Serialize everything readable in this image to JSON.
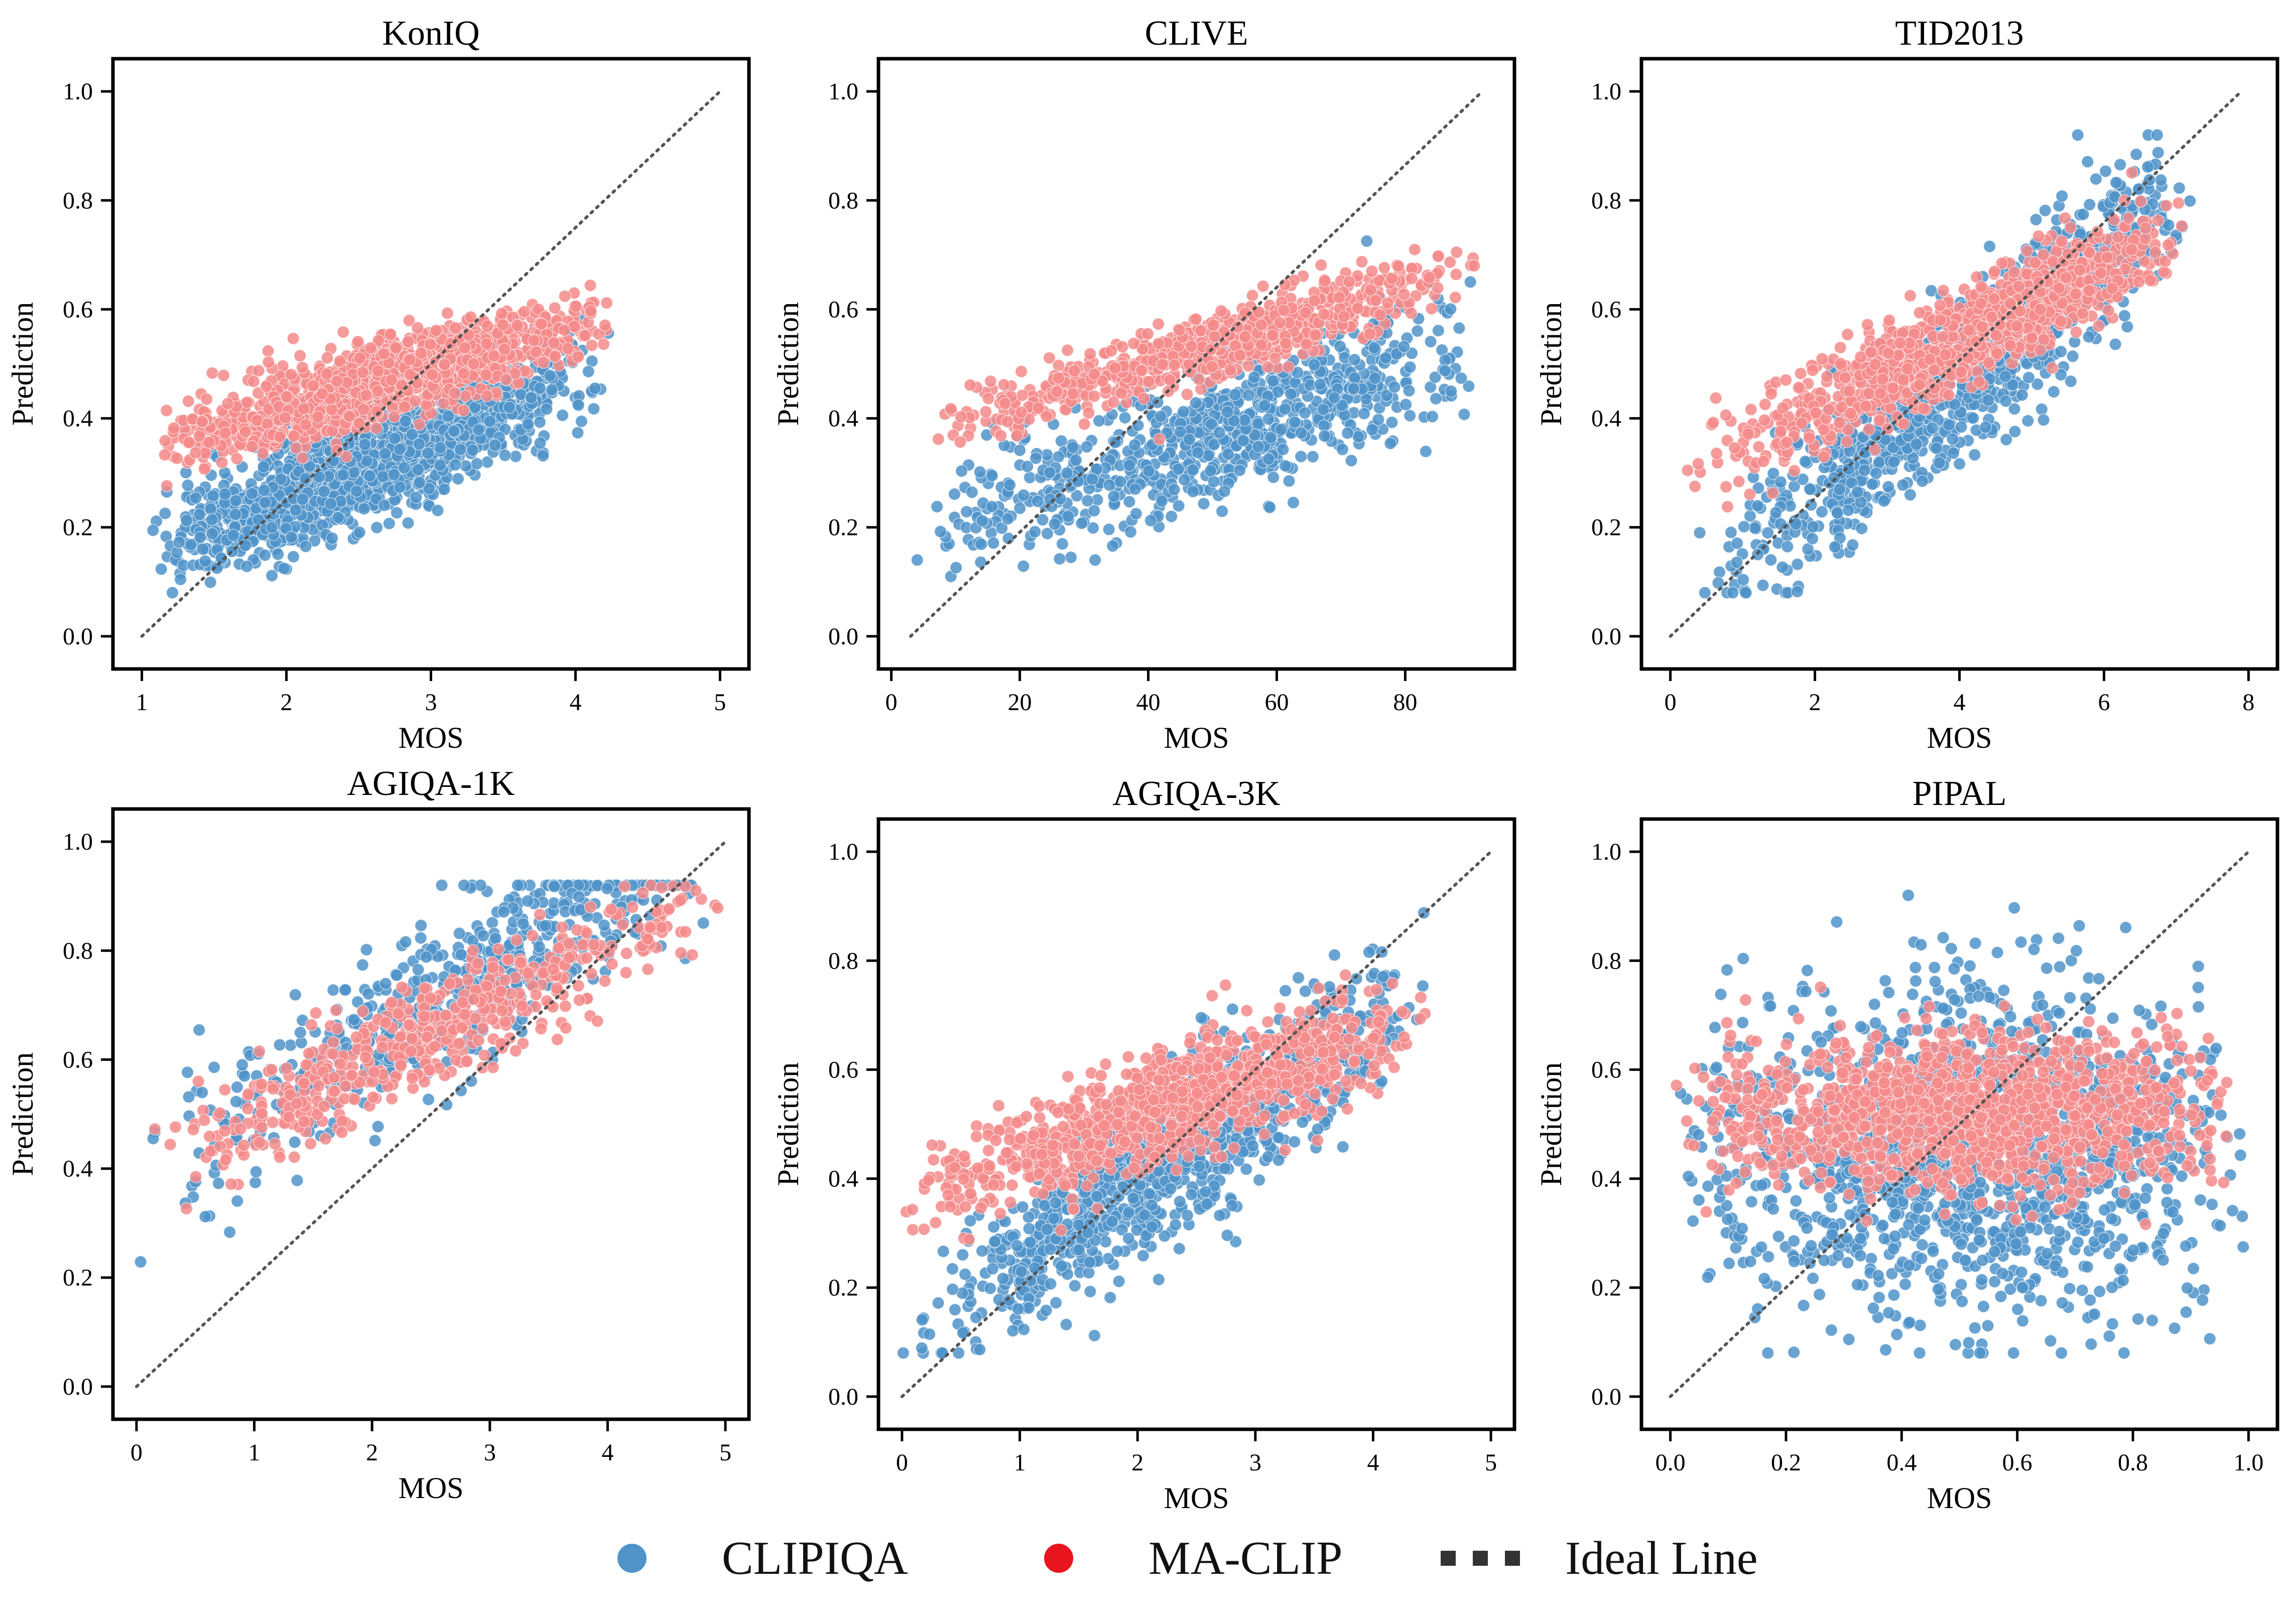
{
  "colors": {
    "clipiqa": "#4f93c9",
    "maclip": "#f48a8a",
    "maclip_legend": "#e8141e",
    "ideal": "#555555"
  },
  "legend": {
    "clipiqa": "CLIPIQA",
    "maclip": "MA-CLIP",
    "ideal": "Ideal Line"
  },
  "chart_data": [
    {
      "type": "scatter",
      "title": "KonIQ",
      "xlabel": "MOS",
      "ylabel": "Prediction",
      "xlim": [
        0.8,
        5.2
      ],
      "ylim": [
        -0.06,
        1.06
      ],
      "xticks": [
        "1",
        "2",
        "3",
        "4",
        "5"
      ],
      "yticks": [
        "0.0",
        "0.2",
        "0.4",
        "0.6",
        "0.8",
        "1.0"
      ],
      "ideal_line": [
        [
          1,
          0
        ],
        [
          5,
          1
        ]
      ],
      "series": [
        {
          "name": "CLIPIQA",
          "dist": {
            "x_min": 1.05,
            "x_max": 4.3,
            "x_mode": 2.2,
            "y0": 0.155,
            "slope": 0.105,
            "spread": 0.05,
            "count": 1400
          }
        },
        {
          "name": "MA-CLIP",
          "dist": {
            "x_min": 1.1,
            "x_max": 4.35,
            "x_mode": 2.6,
            "y0": 0.35,
            "slope": 0.075,
            "spread": 0.035,
            "count": 1300
          }
        }
      ]
    },
    {
      "type": "scatter",
      "title": "CLIVE",
      "xlabel": "MOS",
      "ylabel": "Prediction",
      "xlim": [
        -2,
        97
      ],
      "ylim": [
        -0.06,
        1.06
      ],
      "xticks": [
        "0",
        "20",
        "40",
        "60",
        "80"
      ],
      "yticks": [
        "0.0",
        "0.2",
        "0.4",
        "0.6",
        "0.8",
        "1.0"
      ],
      "ideal_line": [
        [
          3,
          0
        ],
        [
          92,
          1
        ]
      ],
      "series": [
        {
          "name": "CLIPIQA",
          "dist": {
            "x_min": 3,
            "x_max": 92,
            "x_mode": 58,
            "y0": 0.17,
            "slope": 0.0042,
            "spread": 0.06,
            "count": 800
          }
        },
        {
          "name": "MA-CLIP",
          "dist": {
            "x_min": 3,
            "x_max": 92,
            "x_mode": 60,
            "y0": 0.37,
            "slope": 0.0035,
            "spread": 0.03,
            "count": 700
          }
        }
      ]
    },
    {
      "type": "scatter",
      "title": "TID2013",
      "xlabel": "MOS",
      "ylabel": "Prediction",
      "xlim": [
        -0.4,
        8.4
      ],
      "ylim": [
        -0.06,
        1.06
      ],
      "xticks": [
        "0",
        "2",
        "4",
        "6",
        "8"
      ],
      "yticks": [
        "0.0",
        "0.2",
        "0.4",
        "0.6",
        "0.8",
        "1.0"
      ],
      "ideal_line": [
        [
          0,
          0
        ],
        [
          7.9,
          1
        ]
      ],
      "series": [
        {
          "name": "CLIPIQA",
          "dist": {
            "x_min": 0.3,
            "x_max": 7.2,
            "x_mode": 5,
            "y0": 0.07,
            "slope": 0.11,
            "spread": 0.07,
            "count": 1100
          }
        },
        {
          "name": "MA-CLIP",
          "dist": {
            "x_min": 0.2,
            "x_max": 7.2,
            "x_mode": 5,
            "y0": 0.3,
            "slope": 0.065,
            "spread": 0.045,
            "count": 1000
          }
        }
      ]
    },
    {
      "type": "scatter",
      "title": "AGIQA-1K",
      "xlabel": "MOS",
      "ylabel": "Prediction",
      "xlim": [
        -0.2,
        5.2
      ],
      "ylim": [
        -0.06,
        1.06
      ],
      "xticks": [
        "0",
        "1",
        "2",
        "3",
        "4",
        "5"
      ],
      "yticks": [
        "0.0",
        "0.2",
        "0.4",
        "0.6",
        "0.8",
        "1.0"
      ],
      "ideal_line": [
        [
          0,
          0
        ],
        [
          5,
          1
        ]
      ],
      "series": [
        {
          "name": "CLIPIQA",
          "dist": {
            "x_min": 0,
            "x_max": 5,
            "x_mode": 2.8,
            "y0": 0.4,
            "slope": 0.12,
            "spread": 0.07,
            "count": 550
          }
        },
        {
          "name": "MA-CLIP",
          "dist": {
            "x_min": 0,
            "x_max": 5,
            "x_mode": 2.7,
            "y0": 0.4,
            "slope": 0.1,
            "spread": 0.05,
            "count": 550
          }
        }
      ]
    },
    {
      "type": "scatter",
      "title": "AGIQA-3K",
      "xlabel": "MOS",
      "ylabel": "Prediction",
      "xlim": [
        -0.2,
        5.2
      ],
      "ylim": [
        -0.06,
        1.06
      ],
      "xticks": [
        "0",
        "1",
        "2",
        "3",
        "4",
        "5"
      ],
      "yticks": [
        "0.0",
        "0.2",
        "0.4",
        "0.6",
        "0.8",
        "1.0"
      ],
      "ideal_line": [
        [
          0,
          0
        ],
        [
          5,
          1
        ]
      ],
      "series": [
        {
          "name": "CLIPIQA",
          "dist": {
            "x_min": 0,
            "x_max": 4.5,
            "x_mode": 2.5,
            "y0": 0.12,
            "slope": 0.14,
            "spread": 0.07,
            "count": 1100
          }
        },
        {
          "name": "MA-CLIP",
          "dist": {
            "x_min": 0,
            "x_max": 4.5,
            "x_mode": 2.6,
            "y0": 0.36,
            "slope": 0.075,
            "spread": 0.05,
            "count": 1000
          }
        }
      ]
    },
    {
      "type": "scatter",
      "title": "PIPAL",
      "xlabel": "MOS",
      "ylabel": "Prediction",
      "xlim": [
        -0.05,
        1.05
      ],
      "ylim": [
        -0.06,
        1.06
      ],
      "xticks": [
        "0.0",
        "0.2",
        "0.4",
        "0.6",
        "0.8",
        "1.0"
      ],
      "yticks": [
        "0.0",
        "0.2",
        "0.4",
        "0.6",
        "0.8",
        "1.0"
      ],
      "ideal_line": [
        [
          0,
          0
        ],
        [
          1,
          1
        ]
      ],
      "series": [
        {
          "name": "CLIPIQA",
          "dist": {
            "x_min": 0,
            "x_max": 1,
            "x_mode": 0.55,
            "y0": 0.45,
            "slope": 0.0,
            "spread": 0.15,
            "count": 1500
          }
        },
        {
          "name": "MA-CLIP",
          "dist": {
            "x_min": 0,
            "x_max": 1,
            "x_mode": 0.55,
            "y0": 0.52,
            "slope": 0.0,
            "spread": 0.07,
            "count": 1300
          }
        }
      ]
    }
  ]
}
